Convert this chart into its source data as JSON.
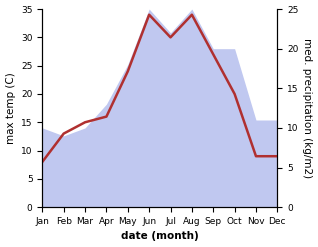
{
  "months": [
    "Jan",
    "Feb",
    "Mar",
    "Apr",
    "May",
    "Jun",
    "Jul",
    "Aug",
    "Sep",
    "Oct",
    "Nov",
    "Dec"
  ],
  "temperature": [
    8,
    13,
    15,
    16,
    24,
    34,
    30,
    34,
    27,
    20,
    9,
    9
  ],
  "precipitation": [
    10,
    9,
    10,
    13,
    18,
    25,
    22,
    25,
    20,
    20,
    11,
    11
  ],
  "temp_color": "#b03030",
  "precip_color_fill": "#c0c8f0",
  "background_color": "#ffffff",
  "ylabel_left": "max temp (C)",
  "ylabel_right": "med. precipitation (kg/m2)",
  "xlabel": "date (month)",
  "ylim_left": [
    0,
    35
  ],
  "ylim_right": [
    0,
    25
  ],
  "yticks_left": [
    0,
    5,
    10,
    15,
    20,
    25,
    30,
    35
  ],
  "yticks_right": [
    0,
    5,
    10,
    15,
    20,
    25
  ],
  "label_fontsize": 7.5,
  "tick_fontsize": 6.5,
  "linewidth": 1.8
}
